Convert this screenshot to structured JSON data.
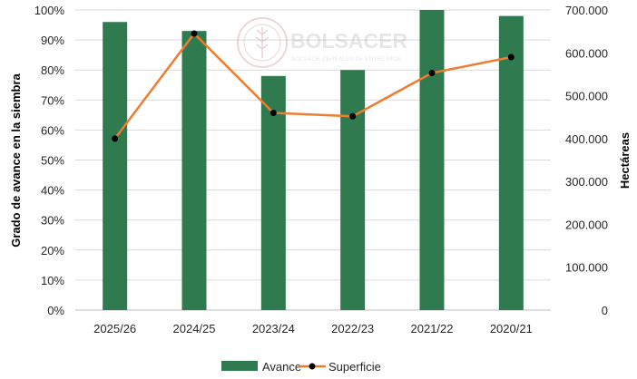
{
  "watermark": {
    "name": "BOLSACER",
    "tagline": "BOLSA DE CEREALES DE ENTRE RÍOS"
  },
  "chart_data": {
    "type": "bar",
    "categories": [
      "2025/26",
      "2024/25",
      "2023/24",
      "2022/23",
      "2021/22",
      "2020/21"
    ],
    "series": [
      {
        "name": "Avance",
        "type": "bar",
        "axis": "left",
        "color": "#2f7a4e",
        "values": [
          96,
          93,
          78,
          80,
          100,
          98
        ]
      },
      {
        "name": "Superficie",
        "type": "line",
        "axis": "right",
        "color": "#ed7d31",
        "marker_color": "#000000",
        "values": [
          400000,
          645000,
          460000,
          452000,
          553000,
          590000
        ]
      }
    ],
    "ylabel": "Grado de avance en la siembra",
    "y2label": "Hectáreas",
    "ylim": [
      0,
      100
    ],
    "y2lim": [
      0,
      700000
    ],
    "yticks": [
      "0%",
      "10%",
      "20%",
      "30%",
      "40%",
      "50%",
      "60%",
      "70%",
      "80%",
      "90%",
      "100%"
    ],
    "y2ticks": [
      "0",
      "100.000",
      "200.000",
      "300.000",
      "400.000",
      "500.000",
      "600.000",
      "700.000"
    ],
    "grid": true,
    "legend_position": "bottom"
  }
}
